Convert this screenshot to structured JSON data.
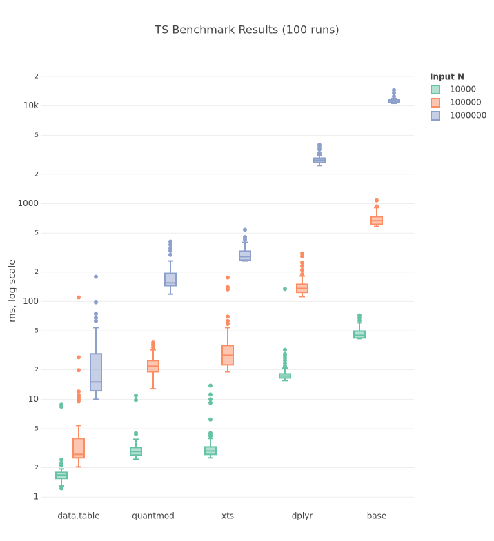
{
  "chart_data": {
    "type": "box",
    "title": "TS Benchmark Results (100 runs)",
    "y_label": "ms, log scale",
    "log_y": true,
    "grid": true,
    "legend_title": "Input N",
    "legend_position": "right",
    "categories": [
      "data.table",
      "quantmod",
      "xts",
      "dplyr",
      "base"
    ],
    "ylim": [
      0.8,
      29000
    ],
    "yticks": [
      1,
      2,
      5,
      10,
      {
        "value": 20,
        "label": "2"
      },
      {
        "value": 50,
        "label": "5"
      },
      100,
      {
        "value": 200,
        "label": "2"
      },
      {
        "value": 500,
        "label": "5"
      },
      1000,
      {
        "value": 2000,
        "label": "2"
      },
      {
        "value": 5000,
        "label": "5"
      },
      {
        "value": 10000,
        "label": "10k"
      },
      {
        "value": 20000,
        "label": "2"
      }
    ],
    "series": [
      {
        "name": "10000",
        "color": "#66c2a5",
        "lowerfence": [
          1.3,
          2.44,
          2.52,
          15.5,
          41.7
        ],
        "q1": [
          1.55,
          2.69,
          2.73,
          16.5,
          42.4
        ],
        "median": [
          1.68,
          2.92,
          2.96,
          17.3,
          45.1
        ],
        "q3": [
          1.79,
          3.21,
          3.26,
          18.2,
          49.8
        ],
        "upperfence": [
          1.94,
          3.9,
          3.97,
          20.8,
          60.5
        ],
        "outliers": [
          [
            1.23,
            2.11,
            2.2,
            2.4,
            8.4,
            8.8
          ],
          [
            4.4,
            4.5,
            9.8,
            10.9
          ],
          [
            4.2,
            4.35,
            4.5,
            6.2,
            9.2,
            10,
            11.2,
            13.8
          ],
          [
            21,
            22,
            23.5,
            25,
            26.5,
            28,
            29,
            32,
            134
          ],
          [
            64,
            68,
            72
          ]
        ]
      },
      {
        "name": "100000",
        "color": "#fc8d62",
        "lowerfence": [
          2.04,
          12.8,
          19.1,
          112,
          585
        ],
        "q1": [
          2.52,
          19.1,
          22.5,
          124,
          615
        ],
        "median": [
          2.73,
          21.8,
          28.2,
          136,
          670
        ],
        "q3": [
          3.97,
          24.8,
          35.4,
          150,
          735
        ],
        "upperfence": [
          5.4,
          32,
          54,
          182,
          910
        ],
        "outliers": [
          [
            9.5,
            10,
            10.5,
            11,
            12,
            19.8,
            26.9,
            110
          ],
          [
            34,
            36,
            38
          ],
          [
            59,
            63,
            70,
            133,
            140,
            176
          ],
          [
            190,
            210,
            230,
            250,
            290,
            310
          ],
          [
            940,
            1080
          ]
        ]
      },
      {
        "name": "1000000",
        "color": "#8da0cb",
        "lowerfence": [
          10,
          119,
          260,
          2450,
          10600
        ],
        "q1": [
          12.2,
          145,
          265,
          2650,
          10850
        ],
        "median": [
          15,
          155,
          287,
          2790,
          11200
        ],
        "q3": [
          29.2,
          194,
          327,
          2920,
          11550
        ],
        "upperfence": [
          54,
          260,
          403,
          3140,
          11900
        ],
        "outliers": [
          [
            63,
            68,
            75,
            98,
            179
          ],
          [
            300,
            330,
            350,
            380,
            410
          ],
          [
            430,
            455,
            540
          ],
          [
            3300,
            3600,
            3800,
            4000
          ],
          [
            12500,
            13500,
            14500
          ]
        ]
      }
    ]
  }
}
